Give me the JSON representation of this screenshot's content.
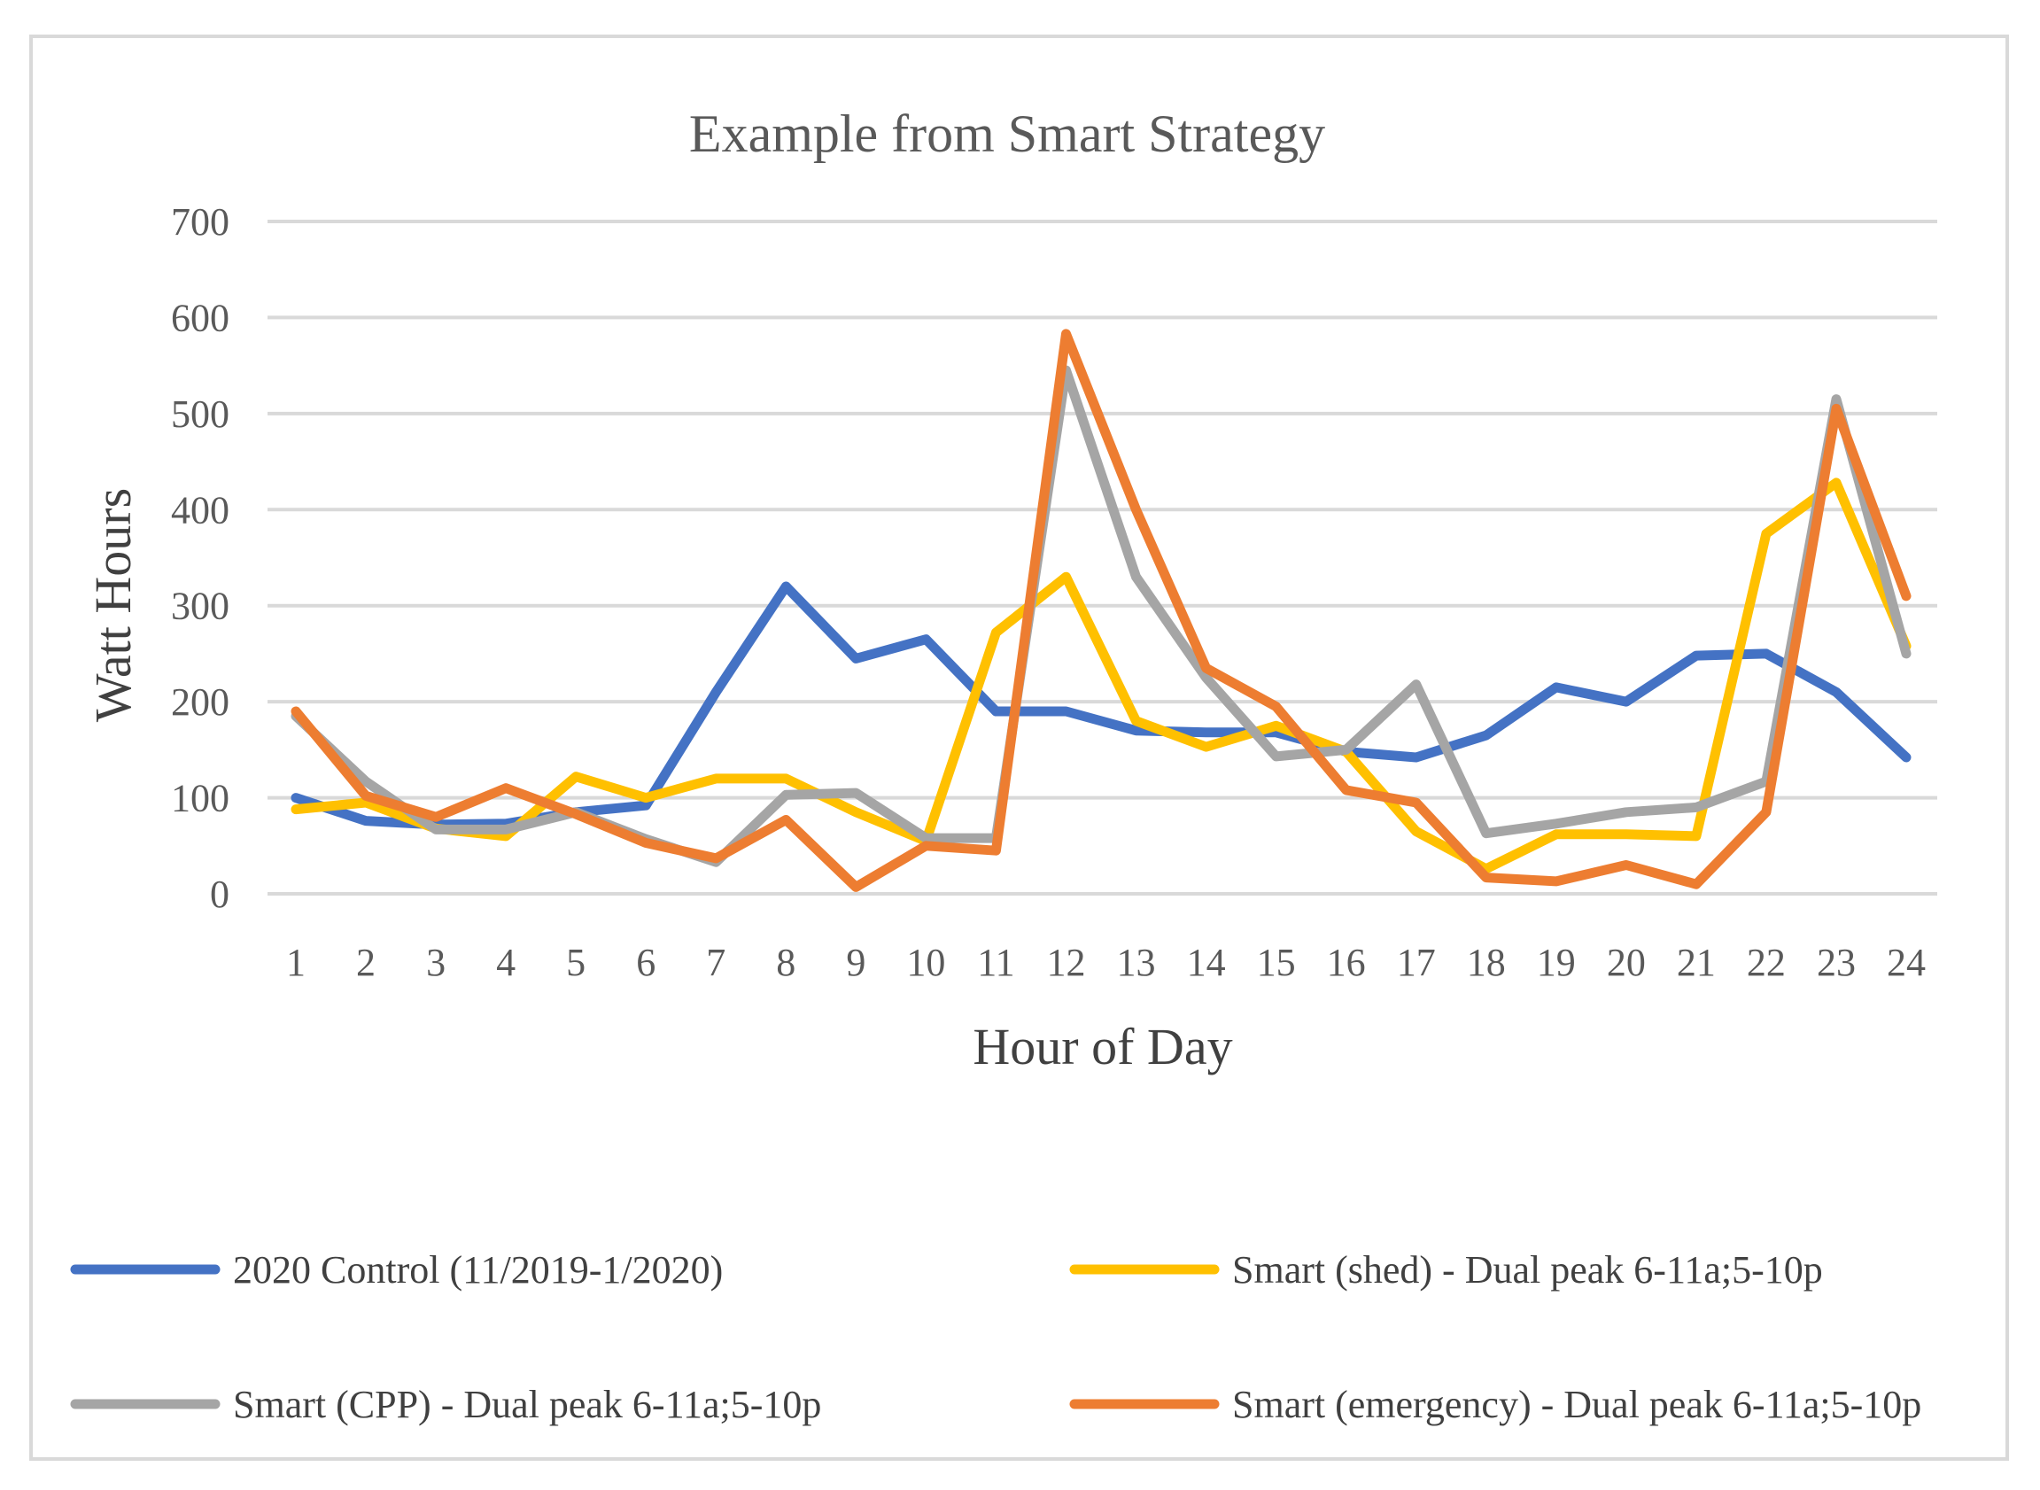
{
  "chart_data": {
    "type": "line",
    "title": "Example from Smart Strategy",
    "xlabel": "Hour of Day",
    "ylabel": "Watt Hours",
    "ylim": [
      0,
      700
    ],
    "yticks": [
      0,
      100,
      200,
      300,
      400,
      500,
      600,
      700
    ],
    "grid": true,
    "legend_position": "bottom",
    "categories": [
      "1",
      "2",
      "3",
      "4",
      "5",
      "6",
      "7",
      "8",
      "9",
      "10",
      "11",
      "12",
      "13",
      "14",
      "15",
      "16",
      "17",
      "18",
      "19",
      "20",
      "21",
      "22",
      "23",
      "24"
    ],
    "series": [
      {
        "name": "2020 Control (11/2019-1/2020)",
        "color": "#4472c4",
        "values": [
          100,
          76,
          72,
          73,
          85,
          92,
          210,
          320,
          245,
          265,
          190,
          190,
          170,
          168,
          168,
          148,
          142,
          165,
          215,
          200,
          248,
          250,
          210,
          142
        ]
      },
      {
        "name": "Smart (shed) - Dual peak 6-11a;5-10p",
        "color": "#ffc000",
        "values": [
          88,
          95,
          68,
          60,
          122,
          100,
          120,
          120,
          85,
          55,
          272,
          330,
          180,
          153,
          175,
          148,
          65,
          26,
          62,
          62,
          60,
          375,
          428,
          258
        ]
      },
      {
        "name": "Smart (CPP) - Dual peak 6-11a;5-10p",
        "color": "#a5a5a5",
        "values": [
          185,
          117,
          67,
          67,
          85,
          57,
          33,
          103,
          105,
          58,
          58,
          545,
          330,
          225,
          143,
          150,
          218,
          63,
          73,
          85,
          90,
          117,
          515,
          250
        ]
      },
      {
        "name": "Smart (emergency) - Dual peak 6-11a;5-10p",
        "color": "#ed7d31",
        "values": [
          190,
          102,
          80,
          110,
          83,
          53,
          37,
          77,
          7,
          50,
          45,
          583,
          400,
          235,
          195,
          108,
          95,
          17,
          13,
          30,
          10,
          85,
          505,
          310
        ]
      }
    ]
  }
}
